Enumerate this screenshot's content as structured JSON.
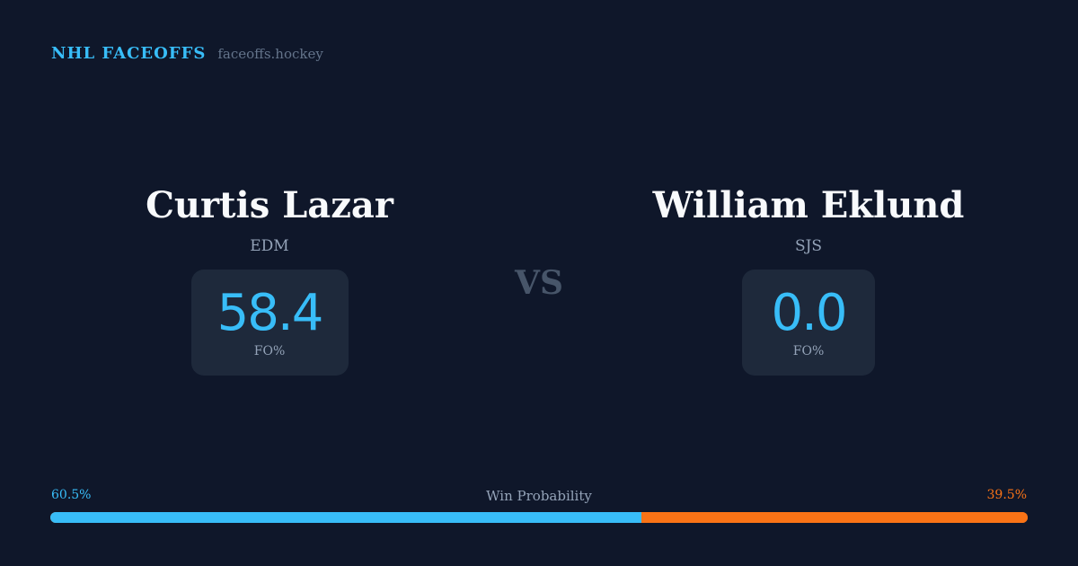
{
  "brand": {
    "name": "NHL FACEOFFS",
    "site": "faceoffs.hockey"
  },
  "players": [
    {
      "name": "Curtis Lazar",
      "team": "EDM",
      "value": "58.4",
      "label": "FO%"
    },
    {
      "name": "William Eklund",
      "team": "SJS",
      "value": "0.0",
      "label": "FO%"
    }
  ],
  "vs": "VS",
  "probability": {
    "title": "Win Probability",
    "left": "60.5%",
    "right": "39.5%",
    "left_value": 60.5,
    "right_value": 39.5,
    "colors": {
      "left": "#38bdf8",
      "right": "#f97316"
    }
  }
}
